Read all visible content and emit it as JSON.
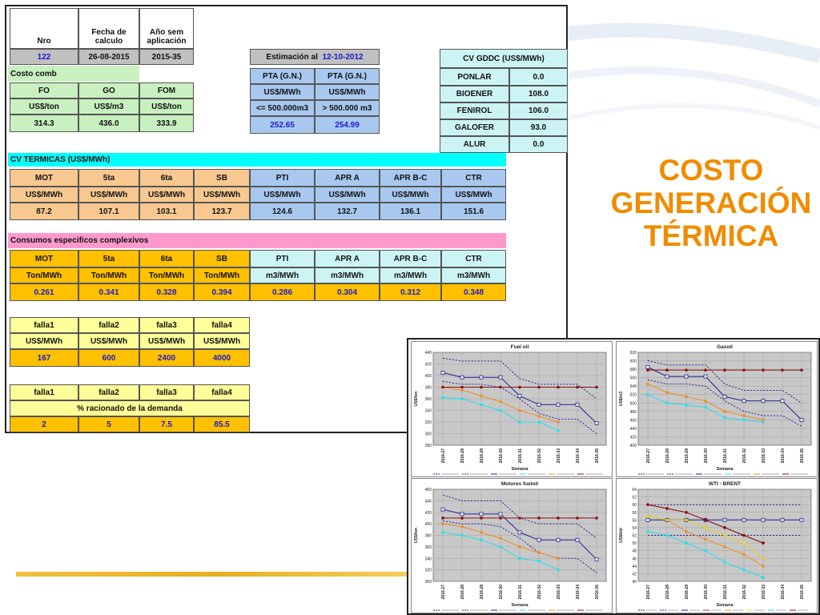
{
  "title_lines": [
    "COSTO",
    "GENERACIÓN",
    "TÉRMICA"
  ],
  "header": {
    "nro_label": "Nro",
    "fecha_label": "Fecha de calculo",
    "anio_label": "Año sem aplicación",
    "nro": "122",
    "fecha": "26-08-2015",
    "anio": "2015-35"
  },
  "estimacion": {
    "label": "Estimación al",
    "date": "12-10-2012"
  },
  "pta": {
    "headers": [
      "PTA (G.N.)",
      "PTA (G.N.)"
    ],
    "units": [
      "US$/MWh",
      "US$/MWh"
    ],
    "ranges": [
      "<= 500.000m3",
      "> 500.000 m3"
    ],
    "values": [
      "252.65",
      "254.99"
    ]
  },
  "costo_comb": {
    "label": "Costo comb",
    "headers": [
      "FO",
      "GO",
      "FOM"
    ],
    "units": [
      "US$/ton",
      "US$/m3",
      "US$/ton"
    ],
    "values": [
      "314.3",
      "436.0",
      "333.9"
    ]
  },
  "cv_gddc": {
    "title": "CV GDDC (US$/MWh)",
    "rows": [
      {
        "name": "PONLAR",
        "value": "0.0"
      },
      {
        "name": "BIOENER",
        "value": "108.0"
      },
      {
        "name": "FENIROL",
        "value": "106.0"
      },
      {
        "name": "GALOFER",
        "value": "93.0"
      },
      {
        "name": "ALUR",
        "value": "0.0"
      }
    ]
  },
  "cv_termicas": {
    "title": "CV TERMICAS (US$/MWh)",
    "headers": [
      "MOT",
      "5ta",
      "6ta",
      "SB",
      "PTI",
      "APR A",
      "APR B-C",
      "CTR"
    ],
    "units": [
      "US$/MWh",
      "US$/MWh",
      "US$/MWh",
      "US$/MWh",
      "US$/MWh",
      "US$/MWh",
      "US$/MWh",
      "US$/MWh"
    ],
    "values": [
      "87.2",
      "107.1",
      "103.1",
      "123.7",
      "124.6",
      "132.7",
      "136.1",
      "151.6"
    ]
  },
  "consumos": {
    "title": "Consumos especificos complexivos",
    "headers": [
      "MOT",
      "5ta",
      "6ta",
      "SB",
      "PTI",
      "APR A",
      "APR B-C",
      "CTR"
    ],
    "units": [
      "Ton/MWh",
      "Ton/MWh",
      "Ton/MWh",
      "Ton/MWh",
      "m3/MWh",
      "m3/MWh",
      "m3/MWh",
      "m3/MWh"
    ],
    "values": [
      "0.261",
      "0.341",
      "0.328",
      "0.394",
      "0.286",
      "0.304",
      "0.312",
      "0.348"
    ]
  },
  "falla_costos": {
    "headers": [
      "falla1",
      "falla2",
      "falla3",
      "falla4"
    ],
    "units": [
      "US$/MWh",
      "US$/MWh",
      "US$/MWh",
      "US$/MWh"
    ],
    "values": [
      "167",
      "600",
      "2400",
      "4000"
    ]
  },
  "falla_racionado": {
    "headers": [
      "falla1",
      "falla2",
      "falla3",
      "falla4"
    ],
    "subtitle": "% racionado de la demanda",
    "values": [
      "2",
      "5",
      "7.5",
      "85.5"
    ]
  },
  "colors": {
    "title": "#f08c00",
    "navy": "#1f1f8f",
    "orange": "#f08c20",
    "cyan": "#20e0f0",
    "darkred": "#8b1010",
    "yellow": "#f0d020",
    "red": "#c03030"
  },
  "chart_data": [
    {
      "type": "line",
      "title": "Fuel oil",
      "xlabel": "Semana",
      "ylabel": "US$/ton",
      "x": [
        "2016-27",
        "2016-28",
        "2016-29",
        "2016-30",
        "2016-31",
        "2016-32",
        "2016-33",
        "2016-34",
        "2016-35"
      ],
      "ylim": [
        280,
        440
      ],
      "yticks": [
        280,
        300,
        320,
        340,
        360,
        380,
        400,
        420,
        440
      ],
      "series": [
        {
          "style": "dashed",
          "color": "#1f1f8f",
          "values": [
            430,
            425,
            425,
            425,
            395,
            385,
            385,
            385,
            360
          ]
        },
        {
          "style": "dashed",
          "color": "#1f1f8f",
          "values": [
            390,
            385,
            385,
            380,
            360,
            335,
            325,
            325,
            300
          ]
        },
        {
          "style": "square",
          "color": "#1f1f8f",
          "values": [
            405,
            397,
            397,
            397,
            365,
            350,
            350,
            350,
            318
          ]
        },
        {
          "style": "dot",
          "color": "#20e0f0",
          "values": [
            362,
            360,
            350,
            340,
            320,
            320,
            305,
            null,
            null
          ]
        },
        {
          "style": "dot",
          "color": "#f08c20",
          "values": [
            380,
            375,
            365,
            355,
            340,
            330,
            320,
            null,
            null
          ]
        },
        {
          "style": "dot",
          "color": "#8b1010",
          "values": [
            380,
            380,
            380,
            380,
            380,
            380,
            380,
            380,
            380
          ]
        }
      ]
    },
    {
      "type": "line",
      "title": "Gasoil",
      "xlabel": "Semana",
      "ylabel": "US$/m3",
      "x": [
        "2016-27",
        "2016-28",
        "2016-29",
        "2016-30",
        "2016-31",
        "2016-32",
        "2016-33",
        "2016-34",
        "2016-35"
      ],
      "ylim": [
        400,
        620
      ],
      "yticks": [
        400,
        420,
        440,
        460,
        480,
        500,
        520,
        540,
        560,
        580,
        600,
        620
      ],
      "series": [
        {
          "style": "dashed",
          "color": "#1f1f8f",
          "values": [
            600,
            590,
            590,
            590,
            545,
            530,
            530,
            530,
            500
          ]
        },
        {
          "style": "dashed",
          "color": "#1f1f8f",
          "values": [
            555,
            545,
            545,
            540,
            505,
            480,
            470,
            470,
            445
          ]
        },
        {
          "style": "square",
          "color": "#1f1f8f",
          "values": [
            585,
            563,
            563,
            563,
            515,
            505,
            505,
            505,
            460
          ]
        },
        {
          "style": "dot",
          "color": "#20e0f0",
          "values": [
            520,
            500,
            495,
            490,
            465,
            460,
            455,
            null,
            null
          ]
        },
        {
          "style": "dot",
          "color": "#f08c20",
          "values": [
            545,
            525,
            515,
            505,
            480,
            470,
            460,
            null,
            null
          ]
        },
        {
          "style": "dot",
          "color": "#8b1010",
          "values": [
            578,
            578,
            578,
            578,
            578,
            578,
            578,
            578,
            578
          ]
        }
      ]
    },
    {
      "type": "line",
      "title": "Motores fueloil",
      "xlabel": "Semana",
      "ylabel": "US$/ton",
      "x": [
        "2016-27",
        "2016-28",
        "2016-29",
        "2016-30",
        "2016-31",
        "2016-32",
        "2016-33",
        "2016-34",
        "2016-35"
      ],
      "ylim": [
        300,
        460
      ],
      "yticks": [
        300,
        320,
        340,
        360,
        380,
        400,
        420,
        440,
        460
      ],
      "series": [
        {
          "style": "dashed",
          "color": "#1f1f8f",
          "values": [
            450,
            440,
            440,
            440,
            410,
            400,
            400,
            400,
            375
          ]
        },
        {
          "style": "dashed",
          "color": "#1f1f8f",
          "values": [
            405,
            400,
            400,
            395,
            375,
            350,
            340,
            340,
            315
          ]
        },
        {
          "style": "square",
          "color": "#1f1f8f",
          "values": [
            425,
            417,
            417,
            417,
            385,
            372,
            372,
            372,
            338
          ]
        },
        {
          "style": "dot",
          "color": "#20e0f0",
          "values": [
            385,
            380,
            372,
            360,
            340,
            335,
            320,
            null,
            null
          ]
        },
        {
          "style": "dot",
          "color": "#f08c20",
          "values": [
            400,
            395,
            385,
            375,
            360,
            350,
            340,
            null,
            null
          ]
        },
        {
          "style": "dot",
          "color": "#8b1010",
          "values": [
            410,
            410,
            410,
            410,
            410,
            410,
            410,
            410,
            410
          ]
        }
      ]
    },
    {
      "type": "line",
      "title": "WTI - BRENT",
      "xlabel": "Semana",
      "ylabel": "US$/bbl",
      "x": [
        "2016-27",
        "2016-28",
        "2016-29",
        "2016-30",
        "2016-31",
        "2016-32",
        "2016-33",
        "2016-34",
        "2016-35"
      ],
      "ylim": [
        40,
        64
      ],
      "yticks": [
        40,
        42,
        44,
        46,
        48,
        50,
        52,
        54,
        56,
        58,
        60,
        62,
        64
      ],
      "series": [
        {
          "style": "dashed",
          "color": "#1f1f8f",
          "values": [
            60,
            60,
            60,
            60,
            60,
            60,
            60,
            60,
            60
          ]
        },
        {
          "style": "dashed",
          "color": "#1f1f8f",
          "values": [
            52,
            52,
            52,
            52,
            52,
            52,
            52,
            52,
            52
          ]
        },
        {
          "style": "square",
          "color": "#1f1f8f",
          "values": [
            56,
            56,
            56,
            56,
            56,
            56,
            56,
            56,
            56
          ]
        },
        {
          "style": "dot",
          "color": "#c03030",
          "values": [
            60,
            59,
            58,
            56,
            54,
            52,
            50,
            null,
            null
          ]
        },
        {
          "style": "dot",
          "color": "#f08c20",
          "values": [
            57,
            56,
            53,
            51,
            49,
            47,
            44,
            null,
            null
          ]
        },
        {
          "style": "dot",
          "color": "#f0d020",
          "values": [
            57,
            56,
            56,
            54,
            52,
            50,
            46,
            null,
            null
          ]
        },
        {
          "style": "dot",
          "color": "#20e0f0",
          "values": [
            53,
            52,
            50,
            48,
            45,
            43,
            41,
            null,
            null
          ]
        },
        {
          "style": "dot",
          "color": "#8b1010",
          "values": [
            60,
            59,
            58,
            56,
            54,
            52,
            50,
            null,
            null
          ]
        }
      ]
    }
  ]
}
